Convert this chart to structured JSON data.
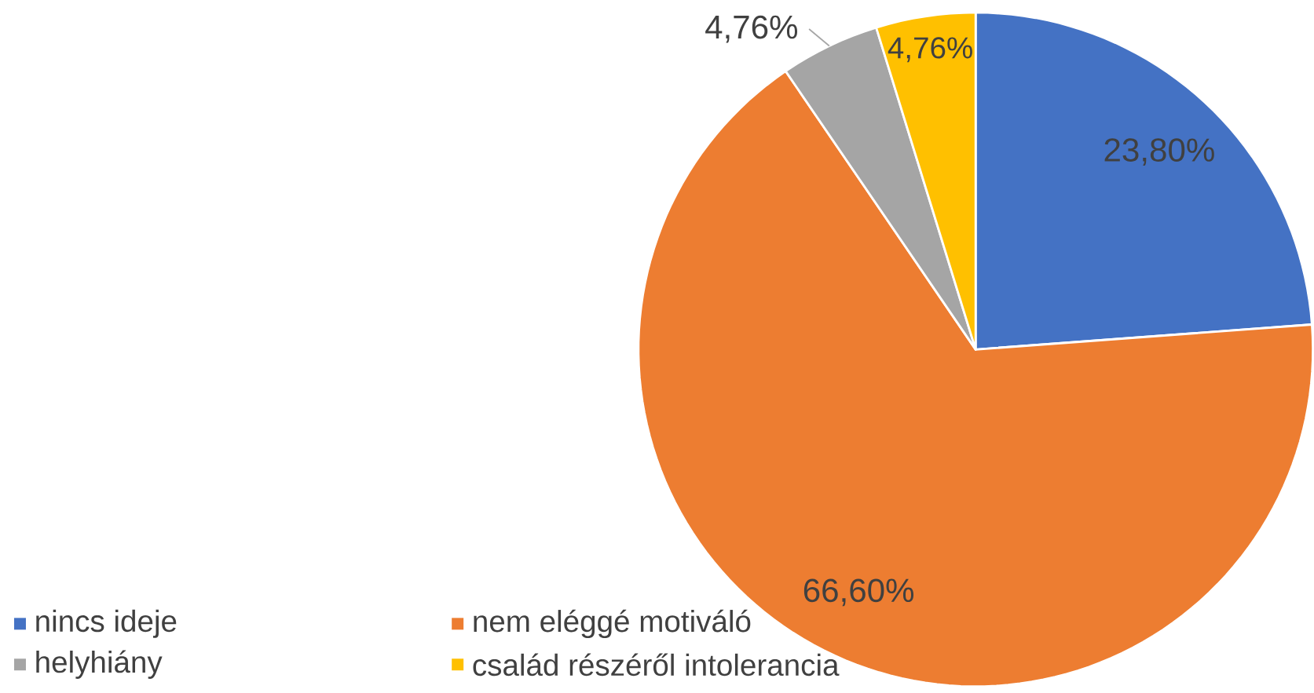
{
  "chart_data": {
    "type": "pie",
    "categories": [
      "nincs ideje",
      "nem eléggé motiváló",
      "helyhiány",
      "család részéről intolerancia"
    ],
    "values": [
      23.8,
      66.6,
      4.76,
      4.76
    ],
    "colors": [
      "#4472c4",
      "#ed7d31",
      "#a5a5a5",
      "#ffc000"
    ],
    "value_labels": [
      "23,80%",
      "66,60%",
      "4,76%",
      "4,76%"
    ],
    "legend": "bottom"
  }
}
